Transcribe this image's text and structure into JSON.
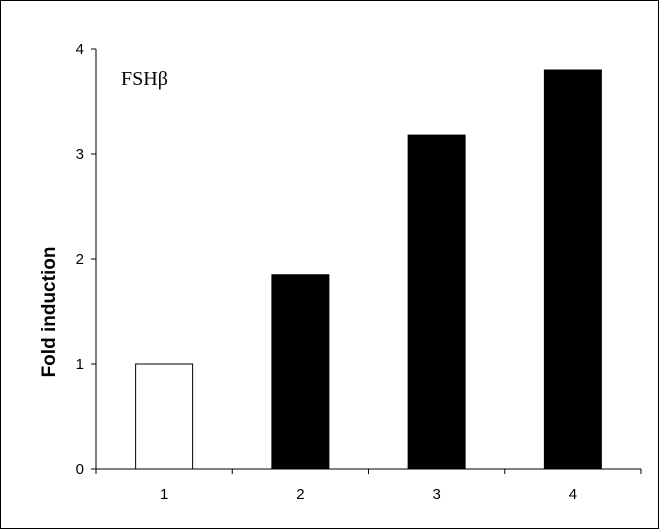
{
  "chart_data": {
    "type": "bar",
    "categories": [
      "1",
      "2",
      "3",
      "4"
    ],
    "values": [
      1.0,
      1.85,
      3.18,
      3.8
    ],
    "bar_colors": [
      "#ffffff",
      "#000000",
      "#000000",
      "#000000"
    ],
    "ylabel": "Fold induction",
    "xlabel": "",
    "ylim": [
      0,
      4
    ],
    "yticks": [
      "0",
      "1",
      "2",
      "3",
      "4"
    ],
    "annotation": "FSHβ",
    "grid": false
  }
}
